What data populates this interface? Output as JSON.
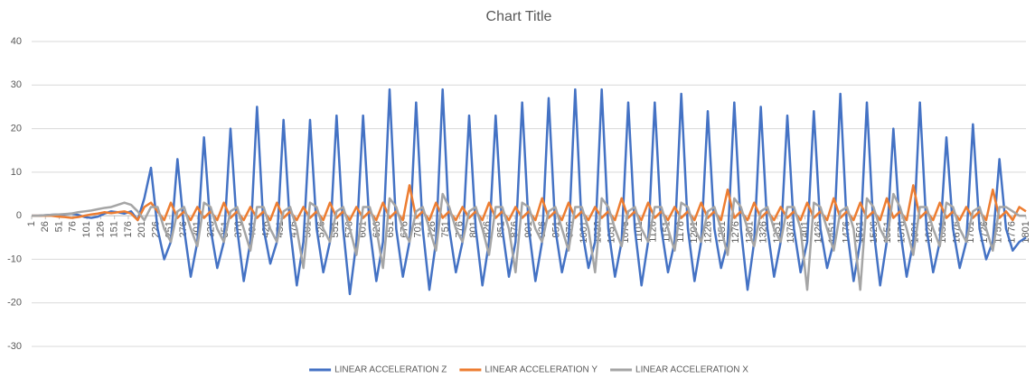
{
  "chart_data": {
    "type": "line",
    "title": "Chart Title",
    "x": [
      1,
      13,
      25,
      37,
      49,
      61,
      73,
      85,
      97,
      109,
      121,
      133,
      145,
      157,
      169,
      181,
      193,
      205,
      217,
      229,
      241,
      253,
      265,
      277,
      289,
      301,
      313,
      325,
      337,
      349,
      361,
      373,
      385,
      397,
      409,
      421,
      433,
      445,
      457,
      469,
      481,
      493,
      505,
      517,
      529,
      541,
      553,
      565,
      577,
      589,
      601,
      613,
      625,
      637,
      649,
      661,
      673,
      685,
      697,
      709,
      721,
      733,
      745,
      757,
      769,
      781,
      793,
      805,
      817,
      829,
      841,
      853,
      865,
      877,
      889,
      901,
      913,
      925,
      937,
      949,
      961,
      973,
      985,
      997,
      1009,
      1021,
      1033,
      1045,
      1057,
      1069,
      1081,
      1093,
      1105,
      1117,
      1129,
      1141,
      1153,
      1165,
      1177,
      1189,
      1201,
      1213,
      1225,
      1237,
      1249,
      1261,
      1273,
      1285,
      1297,
      1309,
      1321,
      1333,
      1345,
      1357,
      1369,
      1381,
      1393,
      1405,
      1417,
      1429,
      1441,
      1453,
      1465,
      1477,
      1489,
      1501,
      1513,
      1525,
      1537,
      1549,
      1561,
      1573,
      1585,
      1597,
      1609,
      1621,
      1633,
      1645,
      1657,
      1669,
      1681,
      1693,
      1705,
      1717,
      1729,
      1741,
      1753,
      1765,
      1777,
      1789,
      1801
    ],
    "xlim": [
      1,
      1801
    ],
    "xticks": [
      1,
      26,
      51,
      76,
      101,
      126,
      151,
      176,
      201,
      226,
      251,
      276,
      301,
      326,
      351,
      376,
      401,
      426,
      451,
      476,
      501,
      526,
      551,
      576,
      601,
      626,
      651,
      676,
      701,
      726,
      751,
      776,
      801,
      826,
      851,
      876,
      901,
      926,
      951,
      976,
      1001,
      1026,
      1051,
      1076,
      1101,
      1126,
      1151,
      1176,
      1201,
      1226,
      1251,
      1276,
      1301,
      1326,
      1351,
      1376,
      1401,
      1426,
      1451,
      1476,
      1501,
      1526,
      1551,
      1576,
      1601,
      1626,
      1651,
      1676,
      1701,
      1726,
      1751,
      1776,
      1801
    ],
    "ylim": [
      -30,
      40
    ],
    "yticks": [
      -30,
      -20,
      -10,
      0,
      10,
      20,
      30,
      40
    ],
    "grid": true,
    "legend": "bottom",
    "series": [
      {
        "name": "LINEAR ACCELERATION Z",
        "color": "#4472c4",
        "values": [
          0,
          0,
          0.1,
          0.2,
          0.3,
          0.3,
          0.5,
          0.2,
          -0.3,
          -0.5,
          -0.2,
          0.5,
          1,
          0.8,
          0.5,
          1,
          -1,
          4,
          11,
          -3,
          -10,
          -6,
          13,
          -3,
          -14,
          -6,
          18,
          -3,
          -12,
          -6,
          20,
          -3,
          -15,
          -6,
          25,
          -3,
          -11,
          -6,
          22,
          -3,
          -16,
          -6,
          22,
          -3,
          -13,
          -6,
          23,
          -3,
          -18,
          -6,
          23,
          -3,
          -15,
          -6,
          29,
          -3,
          -14,
          -6,
          26,
          -3,
          -17,
          -6,
          29,
          -3,
          -13,
          -6,
          23,
          -3,
          -16,
          -6,
          23,
          -3,
          -14,
          -6,
          26,
          -3,
          -15,
          -6,
          27,
          -3,
          -13,
          -6,
          29,
          -3,
          -12,
          -6,
          29,
          -3,
          -14,
          -6,
          26,
          -3,
          -16,
          -6,
          26,
          -3,
          -13,
          -6,
          28,
          -3,
          -15,
          -6,
          24,
          -3,
          -12,
          -6,
          26,
          -3,
          -17,
          -6,
          25,
          -3,
          -14,
          -6,
          23,
          -3,
          -13,
          -6,
          24,
          -3,
          -12,
          -6,
          28,
          -3,
          -15,
          -6,
          26,
          -3,
          -16,
          -6,
          20,
          -3,
          -14,
          -6,
          26,
          -3,
          -13,
          -6,
          18,
          -3,
          -12,
          -6,
          21,
          -3,
          -10,
          -6,
          13,
          -3,
          -8,
          -6,
          -5
        ]
      },
      {
        "name": "LINEAR ACCELERATION Y",
        "color": "#ed7d31",
        "values": [
          0,
          0,
          0,
          0,
          -0.2,
          -0.3,
          -0.5,
          -0.3,
          0,
          0.3,
          0.5,
          0.8,
          0.6,
          0.8,
          1,
          0.5,
          -1,
          2,
          3,
          1,
          -1,
          3,
          -0.5,
          1,
          -1,
          2,
          -0.5,
          1,
          -1,
          3,
          -0.5,
          1,
          -1,
          2,
          -0.5,
          1,
          -1,
          3,
          -0.5,
          1,
          -1,
          2,
          -0.5,
          1,
          -1,
          3,
          -0.5,
          1,
          -1,
          2,
          -0.5,
          1,
          -1,
          3,
          -0.5,
          1,
          -1,
          7,
          -0.5,
          1,
          -1,
          3,
          -0.5,
          1,
          -1,
          2,
          -0.5,
          1,
          -1,
          3,
          -0.5,
          1,
          -1,
          2,
          -0.5,
          1,
          -1,
          4,
          -0.5,
          1,
          -1,
          3,
          -0.5,
          1,
          -1,
          2,
          -0.5,
          1,
          -1,
          4,
          -0.5,
          1,
          -1,
          3,
          -0.5,
          1,
          -1,
          2,
          -0.5,
          1,
          -1,
          3,
          -0.5,
          1,
          -1,
          6,
          -0.5,
          1,
          -1,
          3,
          -0.5,
          1,
          -1,
          2,
          -0.5,
          1,
          -1,
          3,
          -0.5,
          1,
          -1,
          4,
          -0.5,
          1,
          -1,
          3,
          -0.5,
          1,
          -1,
          4,
          -0.5,
          1,
          -1,
          7,
          -0.5,
          1,
          -1,
          3,
          -0.5,
          1,
          -1,
          2,
          -0.5,
          1,
          -1,
          6,
          -0.5,
          1,
          -1,
          2,
          1
        ]
      },
      {
        "name": "LINEAR ACCELERATION X",
        "color": "#a5a5a5",
        "values": [
          0,
          0,
          0.1,
          0.2,
          0.3,
          0.4,
          0.5,
          0.8,
          1,
          1.2,
          1.5,
          1.8,
          2,
          2.5,
          3,
          2.5,
          1,
          -1,
          2,
          2,
          -3,
          -6,
          1,
          2,
          -3,
          -7,
          3,
          2,
          -3,
          -6,
          1,
          2,
          -3,
          -8,
          2,
          2,
          -3,
          -6,
          1,
          2,
          -3,
          -12,
          3,
          2,
          -3,
          -6,
          1,
          2,
          -3,
          -9,
          2,
          2,
          -3,
          -12,
          4,
          2,
          -3,
          -6,
          1,
          2,
          -3,
          -8,
          5,
          2,
          -3,
          -6,
          1,
          2,
          -3,
          -9,
          2,
          2,
          -3,
          -13,
          3,
          2,
          -3,
          -6,
          1,
          2,
          -3,
          -8,
          2,
          2,
          -3,
          -13,
          4,
          2,
          -3,
          -7,
          1,
          2,
          -3,
          -6,
          2,
          2,
          -3,
          -8,
          3,
          2,
          -3,
          -6,
          1,
          2,
          -3,
          -9,
          4,
          2,
          -3,
          -7,
          1,
          2,
          -3,
          -6,
          2,
          2,
          -3,
          -17,
          3,
          2,
          -3,
          -8,
          1,
          2,
          -3,
          -17,
          4,
          2,
          -3,
          -6,
          5,
          2,
          -3,
          -9,
          2,
          2,
          -3,
          -7,
          3,
          2,
          -3,
          -6,
          1,
          2,
          -3,
          -8,
          2,
          2,
          1,
          0,
          0
        ]
      }
    ]
  }
}
